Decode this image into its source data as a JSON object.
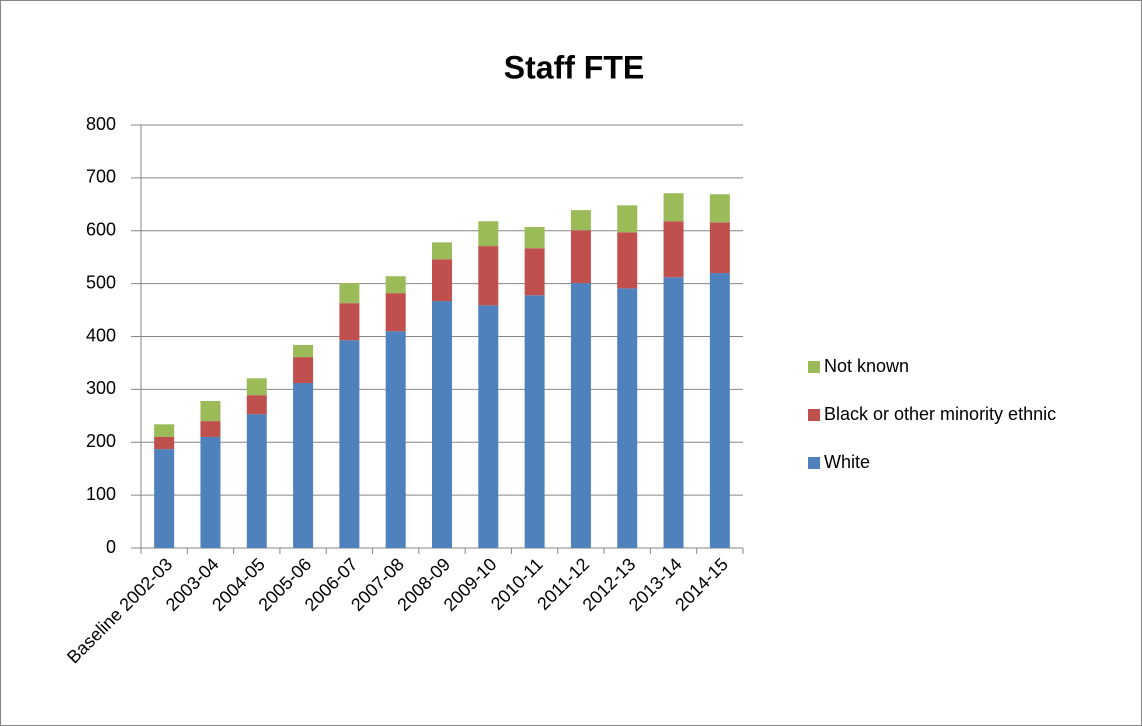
{
  "chart_data": {
    "type": "stacked_bar",
    "title": "Staff FTE",
    "categories": [
      "Baseline 2002-03",
      "2003-04",
      "2004-05",
      "2005-06",
      "2006-07",
      "2007-08",
      "2008-09",
      "2009-10",
      "2010-11",
      "2011-12",
      "2012-13",
      "2013-14",
      "2014-15"
    ],
    "series": [
      {
        "name": "White",
        "color": "#4f81bd",
        "values": [
          187,
          210,
          253,
          312,
          393,
          410,
          467,
          459,
          478,
          501,
          491,
          512,
          520
        ]
      },
      {
        "name": "Black or other minority ethnic",
        "color": "#c0504d",
        "values": [
          23,
          30,
          36,
          49,
          70,
          72,
          79,
          112,
          89,
          100,
          106,
          106,
          96
        ]
      },
      {
        "name": "Not known",
        "color": "#9bbb59",
        "values": [
          24,
          38,
          32,
          23,
          38,
          32,
          32,
          47,
          40,
          38,
          51,
          53,
          53
        ]
      }
    ],
    "ylim": [
      0,
      800
    ],
    "yticks": [
      0,
      100,
      200,
      300,
      400,
      500,
      600,
      700,
      800
    ],
    "grid": true,
    "legend": "right"
  }
}
